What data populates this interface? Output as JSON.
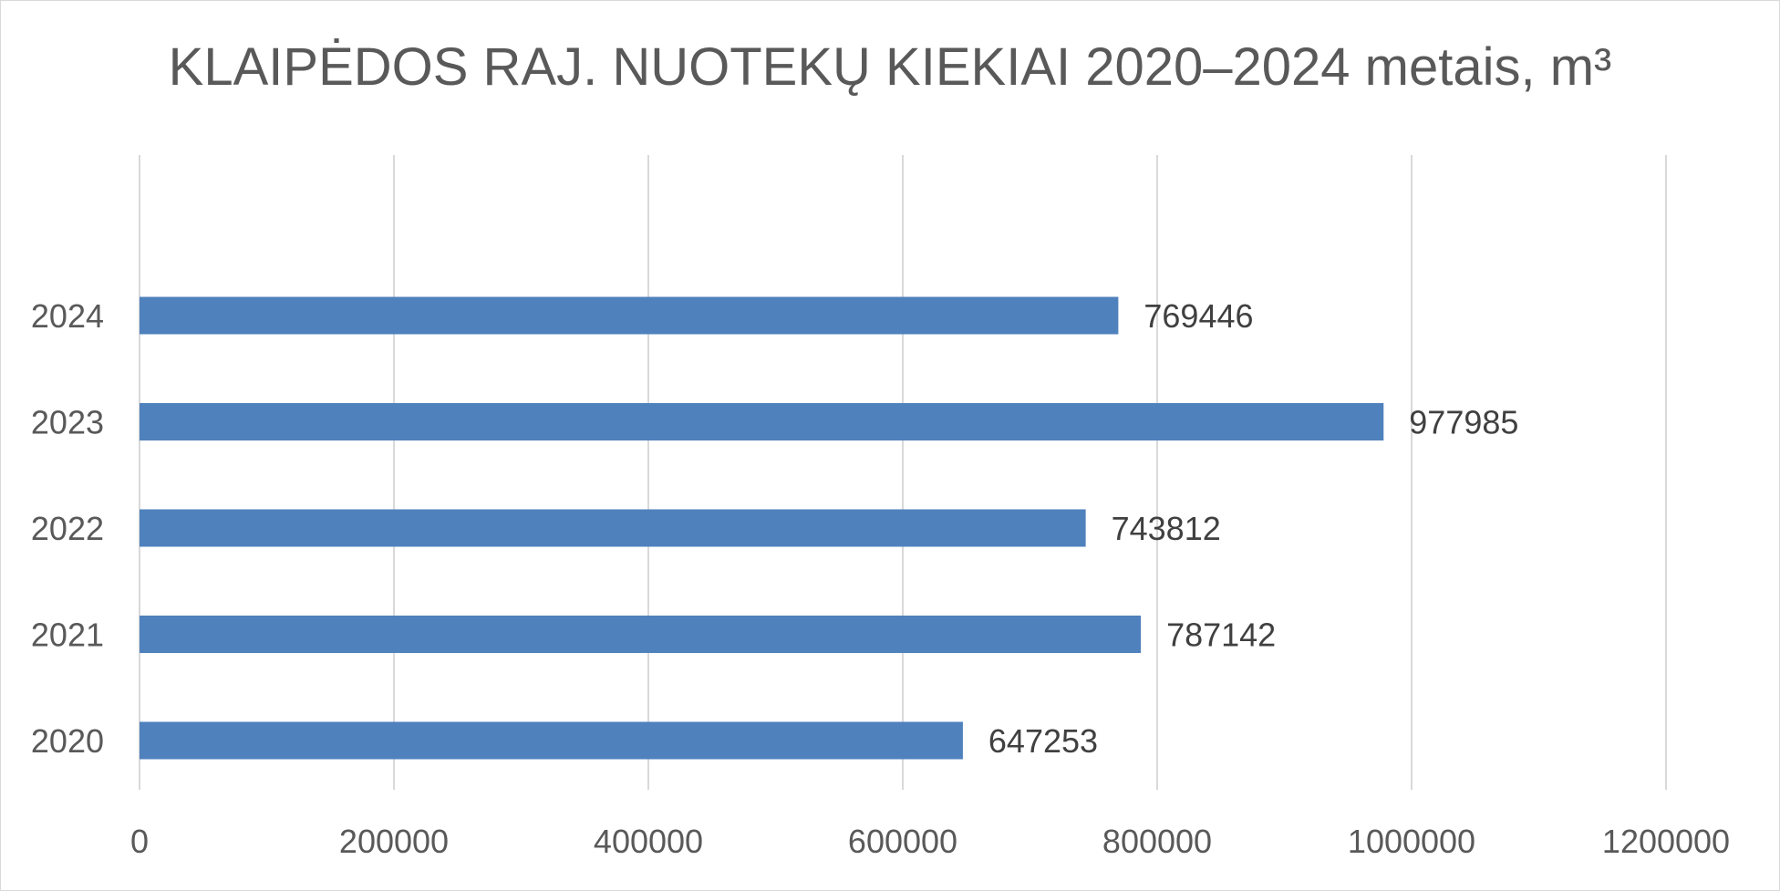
{
  "chart_data": {
    "type": "bar",
    "orientation": "horizontal",
    "title": "KLAIPĖDOS RAJ. NUOTEKŲ KIEKIAI 2020–2024 metais, m³",
    "categories": [
      "2020",
      "2021",
      "2022",
      "2023",
      "2024"
    ],
    "values": [
      647253,
      787142,
      743812,
      977985,
      769446
    ],
    "data_labels": [
      "647253",
      "787142",
      "743812",
      "977985",
      "769446"
    ],
    "xlim": [
      0,
      1200000
    ],
    "x_ticks": [
      0,
      200000,
      400000,
      600000,
      800000,
      1000000,
      1200000
    ],
    "x_tick_labels": [
      "0",
      "200000",
      "400000",
      "600000",
      "800000",
      "1000000",
      "1200000"
    ],
    "grid": "vertical",
    "legend": "none",
    "colors": {
      "bar": "#4f81bd",
      "grid": "#d9d9d9",
      "title": "#595959",
      "tick_label": "#595959",
      "data_label": "#404040"
    }
  }
}
